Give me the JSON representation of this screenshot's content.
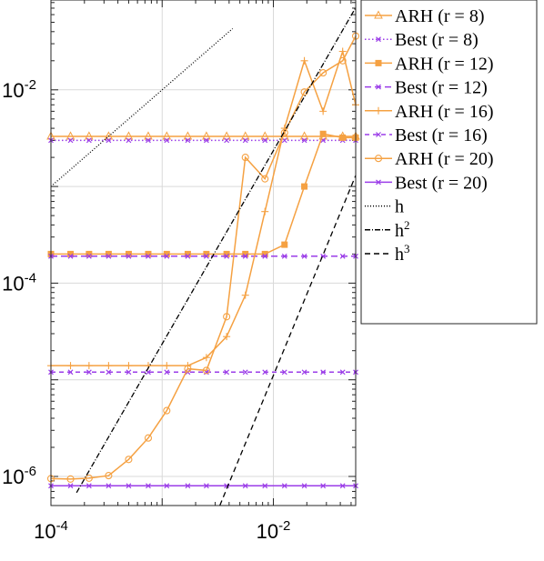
{
  "chart_data": {
    "type": "line",
    "title": "",
    "xlabel": "",
    "ylabel": "",
    "xscale": "log",
    "yscale": "log",
    "xlim": [
      0.0001,
      0.055
    ],
    "ylim": [
      5e-07,
      0.085
    ],
    "grid": true,
    "legend_position": "outside-right",
    "x_ticks": [
      {
        "value": 0.0001,
        "base": "10",
        "exp": "-4"
      },
      {
        "value": 0.01,
        "base": "10",
        "exp": "-2"
      }
    ],
    "y_ticks": [
      {
        "value": 1e-06,
        "base": "10",
        "exp": "-6"
      },
      {
        "value": 0.0001,
        "base": "10",
        "exp": "-4"
      },
      {
        "value": 0.01,
        "base": "10",
        "exp": "-2"
      }
    ],
    "x": [
      0.0001,
      0.00015,
      0.00022,
      0.00033,
      0.0005,
      0.00075,
      0.0011,
      0.0017,
      0.0025,
      0.0038,
      0.0056,
      0.0084,
      0.0126,
      0.019,
      0.028,
      0.042,
      0.055
    ],
    "series": [
      {
        "name_main": "ARH",
        "name_param": "(r = 8)",
        "color": "#f5a142",
        "dash": "",
        "marker": "triangle",
        "values": [
          0.0033,
          0.0033,
          0.0033,
          0.0033,
          0.0033,
          0.0033,
          0.0033,
          0.0033,
          0.0033,
          0.0033,
          0.0033,
          0.0033,
          0.0033,
          0.0033,
          0.0033,
          0.0033,
          0.0033
        ]
      },
      {
        "name_main": "Best",
        "name_param": "(r = 8)",
        "color": "#9b3de8",
        "dash": "1.5,2.5",
        "marker": "x",
        "values": [
          0.003,
          0.003,
          0.003,
          0.003,
          0.003,
          0.003,
          0.003,
          0.003,
          0.003,
          0.003,
          0.003,
          0.003,
          0.003,
          0.003,
          0.003,
          0.003,
          0.003
        ]
      },
      {
        "name_main": "ARH",
        "name_param": "(r = 12)",
        "color": "#f5a142",
        "dash": "",
        "marker": "square",
        "values": [
          0.0002,
          0.0002,
          0.0002,
          0.0002,
          0.0002,
          0.0002,
          0.0002,
          0.0002,
          0.0002,
          0.0002,
          0.0002,
          0.0002,
          0.00025,
          0.001,
          0.0035,
          0.0032,
          0.0032
        ]
      },
      {
        "name_main": "Best",
        "name_param": "(r = 12)",
        "color": "#9b3de8",
        "dash": "7,4",
        "marker": "x",
        "values": [
          0.00019,
          0.00019,
          0.00019,
          0.00019,
          0.00019,
          0.00019,
          0.00019,
          0.00019,
          0.00019,
          0.00019,
          0.00019,
          0.00019,
          0.00019,
          0.00019,
          0.00019,
          0.00019,
          0.00019
        ]
      },
      {
        "name_main": "ARH",
        "name_param": "(r = 16)",
        "color": "#f5a142",
        "dash": "",
        "marker": "plus",
        "values": [
          1.4e-05,
          1.4e-05,
          1.4e-05,
          1.4e-05,
          1.4e-05,
          1.4e-05,
          1.4e-05,
          1.4e-05,
          1.7e-05,
          2.8e-05,
          7.5e-05,
          0.00055,
          0.004,
          0.02,
          0.006,
          0.025,
          0.007
        ]
      },
      {
        "name_main": "Best",
        "name_param": "(r = 16)",
        "color": "#9b3de8",
        "dash": "5,4",
        "marker": "x",
        "values": [
          1.2e-05,
          1.2e-05,
          1.2e-05,
          1.2e-05,
          1.2e-05,
          1.2e-05,
          1.2e-05,
          1.2e-05,
          1.2e-05,
          1.2e-05,
          1.2e-05,
          1.2e-05,
          1.2e-05,
          1.2e-05,
          1.2e-05,
          1.2e-05,
          1.2e-05
        ]
      },
      {
        "name_main": "ARH",
        "name_param": "(r = 20)",
        "color": "#f5a142",
        "dash": "",
        "marker": "circle",
        "values": [
          9.5e-07,
          9.4e-07,
          9.6e-07,
          1.02e-06,
          1.5e-06,
          2.5e-06,
          4.8e-06,
          1.3e-05,
          1.25e-05,
          4.5e-05,
          0.002,
          0.0012,
          0.0036,
          0.0095,
          0.015,
          0.02,
          0.036
        ]
      },
      {
        "name_main": "Best",
        "name_param": "(r = 20)",
        "color": "#9b3de8",
        "dash": "",
        "marker": "x",
        "values": [
          8e-07,
          8e-07,
          8e-07,
          8e-07,
          8e-07,
          8e-07,
          8e-07,
          8e-07,
          8e-07,
          8e-07,
          8e-07,
          8e-07,
          8e-07,
          8e-07,
          8e-07,
          8e-07,
          8e-07
        ]
      },
      {
        "name_main": "h",
        "name_sup": "",
        "color": "#000000",
        "dash": "1,2",
        "marker": "none",
        "x": [
          0.0001,
          0.0043
        ],
        "values": [
          0.001,
          0.043
        ]
      },
      {
        "name_main": "h",
        "name_sup": "2",
        "color": "#000000",
        "dash": "6,2,1,2",
        "marker": "none",
        "x": [
          0.00017,
          0.055
        ],
        "values": [
          6.8e-07,
          0.071
        ]
      },
      {
        "name_main": "h",
        "name_sup": "3",
        "color": "#000000",
        "dash": "6,4",
        "marker": "none",
        "x": [
          0.0033,
          0.055
        ],
        "values": [
          5e-07,
          0.0013
        ]
      }
    ]
  }
}
